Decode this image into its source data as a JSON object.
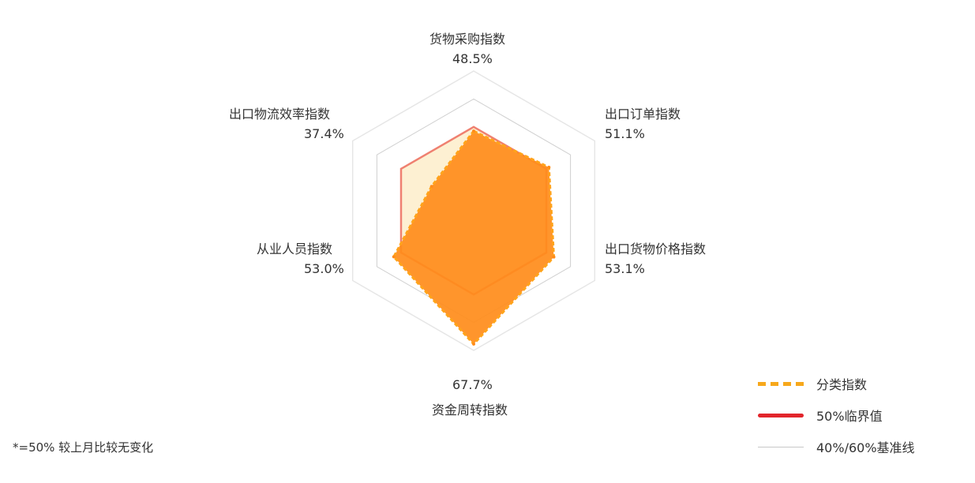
{
  "chart_data": {
    "type": "radar",
    "axes": [
      {
        "name": "货物采购指数",
        "value": 48.5,
        "label": "48.5%"
      },
      {
        "name": "出口订单指数",
        "value": 51.1,
        "label": "51.1%"
      },
      {
        "name": "出口货物价格指数",
        "value": 53.1,
        "label": "53.1%"
      },
      {
        "name": "资金周转指数",
        "value": 67.7,
        "label": "67.7%"
      },
      {
        "name": "从业人员指数",
        "value": 53.0,
        "label": "53.0%"
      },
      {
        "name": "出口物流效率指数",
        "value": 37.4,
        "label": "37.4%"
      }
    ],
    "series": [
      {
        "name": "分类指数",
        "values": [
          48.5,
          51.1,
          53.1,
          67.7,
          53.0,
          37.4
        ],
        "color": "#ff8c1a",
        "style": "dashed"
      },
      {
        "name": "50%临界值",
        "values": [
          50,
          50,
          50,
          50,
          50,
          50
        ],
        "color": "#ef8070",
        "style": "solid"
      }
    ],
    "reference_lines": [
      40,
      60
    ],
    "range": [
      20,
      70
    ],
    "colors": {
      "fill": "#ff8c1a",
      "fill_stroke": "#ffa31a",
      "threshold": "#ef8070",
      "threshold_fill": "#fdf0d2",
      "reference": "#d0d0d0"
    }
  },
  "legend": [
    {
      "label": "分类指数",
      "style": "dashed",
      "color": "#f7a81b"
    },
    {
      "label": "50%临界值",
      "style": "solid",
      "color": "#e2252b"
    },
    {
      "label": "40%/60%基准线",
      "style": "thin",
      "color": "#c8c8c8"
    }
  ],
  "footnote": "*=50% 较上月比较无变化"
}
